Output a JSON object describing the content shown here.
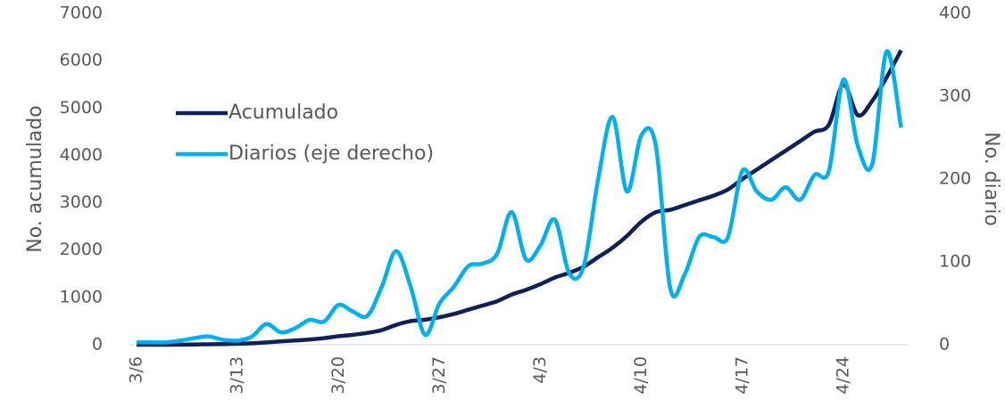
{
  "chart_data": {
    "type": "line",
    "categories": [
      "3/6",
      null,
      null,
      null,
      null,
      null,
      null,
      "3/13",
      null,
      null,
      null,
      null,
      null,
      null,
      "3/20",
      null,
      null,
      null,
      null,
      null,
      null,
      "3/27",
      null,
      null,
      null,
      null,
      null,
      null,
      "4/3",
      null,
      null,
      null,
      null,
      null,
      null,
      "4/10",
      null,
      null,
      null,
      null,
      null,
      null,
      "4/17",
      null,
      null,
      null,
      null,
      null,
      null,
      "4/24",
      null,
      null,
      null,
      null
    ],
    "series": [
      {
        "name": "Acumulado",
        "color": "#0e2159",
        "values": [
          0,
          0,
          0,
          2,
          5,
          10,
          15,
          20,
          30,
          50,
          70,
          90,
          110,
          140,
          180,
          210,
          250,
          310,
          420,
          500,
          530,
          580,
          650,
          740,
          830,
          920,
          1060,
          1160,
          1280,
          1420,
          1520,
          1650,
          1850,
          2050,
          2300,
          2600,
          2800,
          2850,
          2950,
          3050,
          3150,
          3280,
          3500,
          3700,
          3900,
          4100,
          4300,
          4500,
          4650,
          5500,
          4850,
          5150,
          5650,
          6220
        ]
      },
      {
        "name": "Diarios (eje derecho)",
        "color": "#00b0f0",
        "axis": "y2",
        "values": [
          3,
          3,
          3,
          5,
          8,
          10,
          6,
          5,
          10,
          25,
          15,
          20,
          30,
          28,
          48,
          40,
          35,
          70,
          113,
          70,
          12,
          50,
          70,
          95,
          98,
          110,
          160,
          103,
          120,
          151,
          86,
          95,
          200,
          275,
          185,
          253,
          240,
          68,
          85,
          130,
          130,
          130,
          210,
          185,
          175,
          190,
          175,
          205,
          210,
          320,
          240,
          218,
          354,
          262
        ]
      }
    ],
    "ylabel": "No. acumulado",
    "y2label": "No. diario",
    "ylim": [
      0,
      7000
    ],
    "yticks": [
      0,
      1000,
      2000,
      3000,
      4000,
      5000,
      6000,
      7000
    ],
    "y2lim": [
      0,
      400
    ],
    "y2ticks": [
      0,
      100,
      200,
      300,
      400
    ]
  }
}
